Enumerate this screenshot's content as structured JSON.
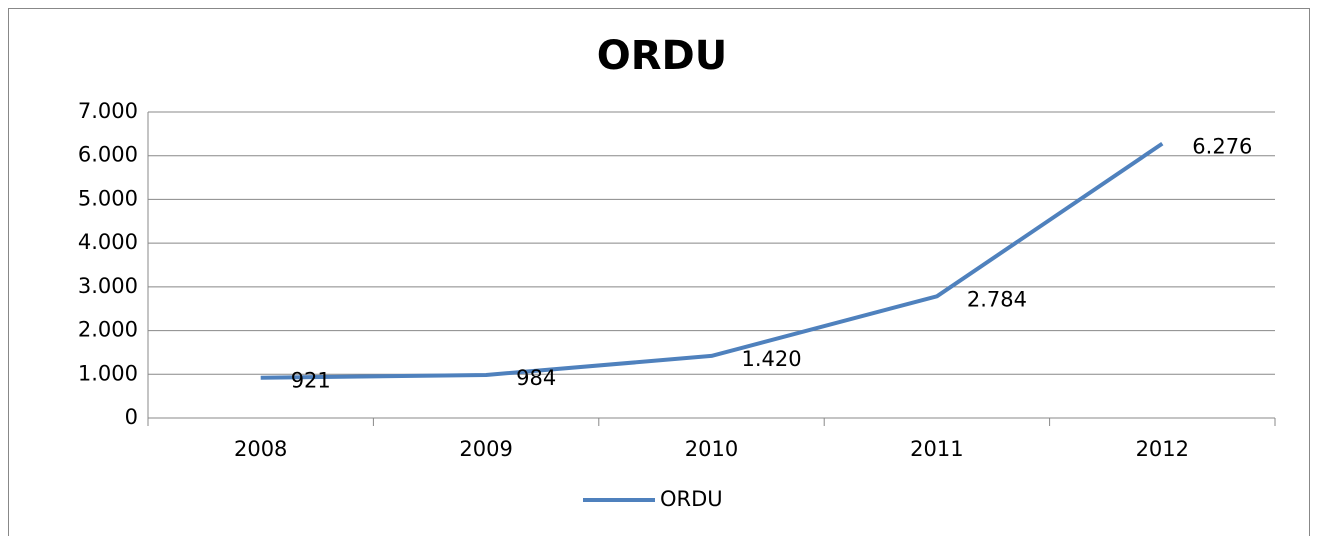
{
  "chart_data": {
    "type": "line",
    "title": "ORDU",
    "categories": [
      "2008",
      "2009",
      "2010",
      "2011",
      "2012"
    ],
    "series": [
      {
        "name": "ORDU",
        "color": "#4f81bd",
        "values": [
          921,
          984,
          1420,
          2784,
          6276
        ],
        "value_labels": [
          "921",
          "984",
          "1.420",
          "2.784",
          "6.276"
        ]
      }
    ],
    "ylim": [
      0,
      7000
    ],
    "yticks": [
      0,
      {
        "value": 1000,
        "label": "1.000"
      },
      {
        "value": 2000,
        "label": "2.000"
      },
      {
        "value": 3000,
        "label": "3.000"
      },
      {
        "value": 4000,
        "label": "4.000"
      },
      {
        "value": 5000,
        "label": "5.000"
      },
      {
        "value": 6000,
        "label": "6.000"
      },
      {
        "value": 7000,
        "label": "7.000"
      }
    ],
    "grid": true,
    "legend": "bottom"
  }
}
